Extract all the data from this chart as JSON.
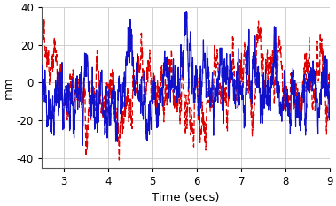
{
  "title": "",
  "xlabel": "Time (secs)",
  "ylabel": "mm",
  "xlim": [
    2.5,
    9.0
  ],
  "ylim": [
    -45,
    40
  ],
  "yticks": [
    -40,
    -20,
    0,
    20,
    40
  ],
  "ytick_labels": [
    "-40",
    "-20",
    "0",
    "20",
    "40"
  ],
  "xticks": [
    3,
    4,
    5,
    6,
    7,
    8,
    9
  ],
  "blue_color": "#1111cc",
  "red_color": "#dd0000",
  "background_color": "#ffffff",
  "grid_color": "#c8c8c8",
  "figsize": [
    3.79,
    2.33
  ],
  "dpi": 100,
  "n_points": 2000,
  "time_start": 2.5,
  "time_end": 9.0
}
